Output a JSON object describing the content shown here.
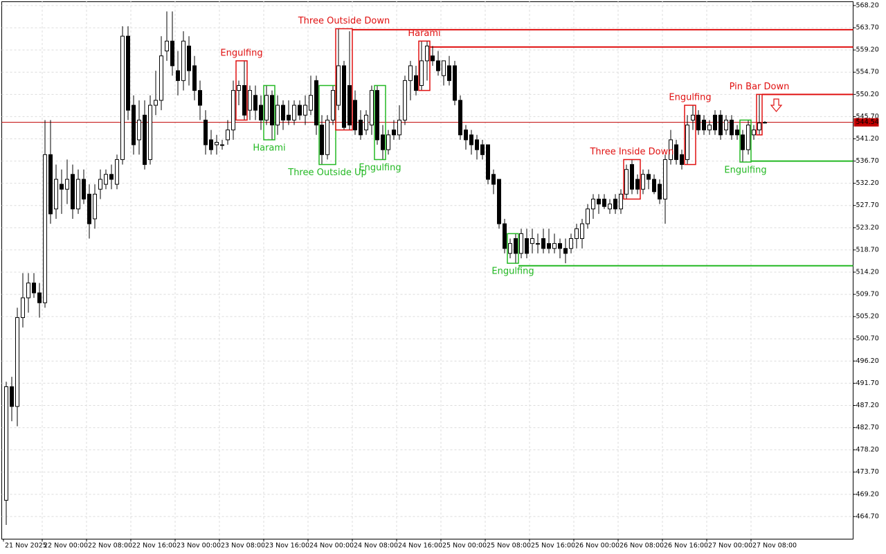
{
  "chart_data": {
    "type": "candlestick",
    "categories": [
      "21 Nov 2025",
      null,
      null,
      null,
      null,
      null,
      null,
      "22 Nov 00:00",
      null,
      null,
      null,
      null,
      null,
      null,
      null,
      "22 Nov 08:00",
      null,
      null,
      null,
      null,
      null,
      null,
      null,
      "22 Nov 16:00",
      null,
      null,
      null,
      null,
      null,
      null,
      null,
      "23 Nov 00:00",
      null,
      null,
      null,
      null,
      null,
      null,
      null,
      "23 Nov 08:00",
      null,
      null,
      null,
      null,
      null,
      null,
      null,
      "23 Nov 16:00",
      null,
      null,
      null,
      null,
      null,
      null,
      null,
      "24 Nov 00:00",
      null,
      null,
      null,
      null,
      null,
      null,
      null,
      "24 Nov 08:00",
      null,
      null,
      null,
      null,
      null,
      null,
      null,
      "24 Nov 16:00",
      null,
      null,
      null,
      null,
      null,
      null,
      null,
      "25 Nov 00:00",
      null,
      null,
      null,
      null,
      null,
      null,
      null,
      "25 Nov 08:00",
      null,
      null,
      null,
      null,
      null,
      null,
      null,
      "25 Nov 16:00",
      null,
      null,
      null,
      null,
      null,
      null,
      null,
      "26 Nov 00:00",
      null,
      null,
      null,
      null,
      null,
      null,
      null,
      "26 Nov 08:00",
      null,
      null,
      null,
      null,
      null,
      null,
      null,
      "26 Nov 16:00",
      null,
      null,
      null,
      null,
      null,
      null,
      null,
      "27 Nov 00:00",
      null,
      null,
      null,
      null,
      null,
      null,
      null,
      "27 Nov 08:00",
      null,
      null
    ],
    "open": [
      468,
      491,
      487,
      505,
      509,
      512,
      510,
      508,
      538,
      527,
      532,
      531,
      534,
      527,
      533,
      530,
      525,
      531,
      532,
      534,
      532,
      537,
      562,
      548,
      541,
      546,
      537,
      548,
      549,
      559,
      561,
      555,
      553,
      560,
      556,
      551,
      545,
      541,
      540,
      540,
      541,
      543,
      551,
      552,
      547,
      550,
      548,
      545,
      550,
      544,
      548,
      546,
      545,
      548,
      546,
      547,
      553,
      544,
      538,
      545,
      548,
      556,
      552,
      549,
      545,
      543,
      544,
      551,
      542,
      539,
      543,
      542,
      545,
      553,
      554,
      552,
      557,
      558,
      557,
      554,
      556,
      556,
      549,
      543,
      542,
      541,
      540,
      540,
      534,
      533,
      524,
      518,
      521,
      518,
      521,
      520,
      520,
      521,
      520,
      519,
      520,
      519,
      519,
      521,
      521,
      524,
      527,
      529,
      529,
      527,
      529,
      527,
      530,
      536,
      533,
      531,
      534,
      533,
      532,
      529,
      537,
      540,
      538,
      537,
      545,
      546,
      545,
      543,
      546,
      546,
      543,
      545,
      543,
      542,
      539,
      542,
      543,
      544.4
    ],
    "high": [
      492,
      493,
      507,
      514,
      514,
      514,
      512,
      545,
      545,
      536,
      535,
      537,
      536,
      535,
      535,
      532,
      532,
      535,
      535,
      536,
      538,
      564,
      564,
      550,
      549,
      549,
      550,
      555,
      562,
      567,
      567,
      559,
      563,
      562,
      558,
      553,
      547,
      543,
      542,
      541,
      545,
      553,
      553,
      557,
      552,
      552,
      550,
      552,
      551,
      550,
      549,
      549,
      549,
      549,
      550,
      554,
      554,
      546,
      546,
      552,
      563.5,
      557,
      563,
      551,
      547,
      547,
      552,
      552,
      544,
      543,
      545,
      548,
      554,
      557,
      556,
      561,
      561,
      560,
      559,
      557,
      558,
      557,
      550,
      544,
      543,
      542,
      541,
      540,
      535,
      533,
      525,
      521,
      522,
      523,
      523,
      523,
      522,
      523,
      523,
      522,
      521,
      521,
      522,
      524,
      525,
      528,
      530,
      530,
      530,
      529,
      530,
      531,
      536,
      537,
      534,
      535,
      535,
      534,
      533,
      538,
      543,
      541,
      539,
      546,
      548,
      547,
      546,
      545,
      547,
      547,
      546,
      546,
      544,
      543,
      545,
      544,
      550.2,
      544.8
    ],
    "low": [
      463,
      484,
      483,
      503,
      506,
      509,
      505,
      507,
      524,
      525,
      526,
      528,
      525,
      526,
      528,
      521,
      523,
      529,
      531,
      531,
      531,
      536,
      545,
      538,
      538,
      535,
      536,
      546,
      547,
      557,
      554,
      550,
      551,
      552,
      549,
      545,
      538,
      538,
      538,
      539,
      540,
      541,
      548,
      545,
      545,
      545,
      543,
      544,
      541,
      542,
      543,
      544,
      544,
      545,
      544,
      546,
      542,
      536,
      537,
      544,
      547,
      543,
      543,
      542,
      541,
      542,
      542,
      540,
      537,
      538,
      541,
      541,
      544,
      549,
      550,
      551,
      553,
      556,
      554,
      552,
      552,
      548,
      541,
      539,
      538,
      537,
      537,
      532,
      530,
      523,
      518,
      517,
      516,
      517,
      517,
      518,
      518,
      518,
      518,
      518,
      517,
      516,
      518,
      519,
      519,
      523,
      525,
      526,
      527,
      526,
      526,
      526,
      529,
      530,
      530,
      530,
      531,
      530,
      528,
      524,
      536,
      536,
      535,
      536,
      543,
      542,
      542,
      542,
      542,
      541,
      542,
      541,
      541,
      536.5,
      538,
      541,
      542,
      544.3
    ],
    "close": [
      491,
      487,
      505,
      509,
      512,
      510,
      508,
      538,
      526,
      533,
      531,
      533,
      527,
      533,
      529,
      524,
      530,
      533,
      534,
      533,
      537,
      562,
      547,
      540,
      545,
      536,
      548,
      549,
      558,
      561,
      556,
      553,
      561,
      555,
      551,
      548,
      540,
      539,
      540.5,
      540,
      543,
      551,
      552,
      546,
      551,
      547,
      545,
      550,
      544,
      548,
      545,
      545,
      548,
      546,
      548,
      550,
      544,
      538,
      545,
      551,
      556,
      543.5,
      544,
      543,
      542,
      546,
      551,
      541,
      539,
      542,
      542,
      545,
      553,
      556,
      551,
      557,
      560,
      557,
      555,
      557,
      553,
      549,
      542,
      541,
      540,
      539,
      538,
      533,
      532,
      524,
      519,
      520,
      518,
      522,
      518,
      521,
      520,
      519,
      519,
      520,
      519,
      518,
      521,
      523,
      524,
      527,
      529,
      528,
      527.5,
      528,
      527,
      530,
      535,
      531,
      531,
      534,
      533,
      530.5,
      529,
      537,
      541,
      537,
      536,
      544,
      546,
      543,
      543,
      544,
      543,
      542,
      545,
      542,
      542,
      539,
      544,
      543,
      544.4,
      544.54
    ],
    "up_color": "#ffffff",
    "down_color": "#000000",
    "wick_color": "#000000",
    "ylim": [
      460.2,
      569.04
    ],
    "yticks": [
      {
        "value": 568.2,
        "label": "568.20"
      },
      {
        "value": 563.7,
        "label": "563.70"
      },
      {
        "value": 559.2,
        "label": "559.20"
      },
      {
        "value": 554.7,
        "label": "554.70"
      },
      {
        "value": 550.2,
        "label": "550.20"
      },
      {
        "value": 545.7,
        "label": "545.70"
      },
      {
        "value": 541.2,
        "label": "541.20"
      },
      {
        "value": 536.7,
        "label": "536.70"
      },
      {
        "value": 532.2,
        "label": "532.20"
      },
      {
        "value": 527.7,
        "label": "527.70"
      },
      {
        "value": 523.2,
        "label": "523.20"
      },
      {
        "value": 518.7,
        "label": "518.70"
      },
      {
        "value": 514.2,
        "label": "514.20"
      },
      {
        "value": 509.7,
        "label": "509.70"
      },
      {
        "value": 505.2,
        "label": "505.20"
      },
      {
        "value": 500.7,
        "label": "500.70"
      },
      {
        "value": 496.2,
        "label": "496.20"
      },
      {
        "value": 491.7,
        "label": "491.70"
      },
      {
        "value": 487.2,
        "label": "487.20"
      },
      {
        "value": 482.7,
        "label": "482.70"
      },
      {
        "value": 478.2,
        "label": "478.20"
      },
      {
        "value": 473.7,
        "label": "473.70"
      },
      {
        "value": 469.2,
        "label": "469.20"
      },
      {
        "value": 464.7,
        "label": "464.70"
      }
    ],
    "grid": true,
    "last_price": {
      "value": 544.54,
      "label": "544.54",
      "color": "#c00000"
    },
    "patterns": [
      {
        "name": "Engulfing",
        "color": "#e01010",
        "span": [
          42,
          43
        ]
      },
      {
        "name": "Harami",
        "color": "#22b822",
        "span": [
          47,
          48
        ]
      },
      {
        "name": "Three Outside Up",
        "color": "#22b822",
        "span": [
          57,
          59
        ]
      },
      {
        "name": "Three Outside Down",
        "color": "#e01010",
        "span": [
          60,
          62
        ],
        "level": 563.3
      },
      {
        "name": "Engulfing",
        "color": "#22b822",
        "span": [
          67,
          68
        ]
      },
      {
        "name": "Harami",
        "color": "#e01010",
        "span": [
          75,
          76
        ],
        "level": 559.8
      },
      {
        "name": "Engulfing",
        "color": "#22b822",
        "span": [
          91,
          92
        ],
        "level": 515.5
      },
      {
        "name": "Three Inside Down",
        "color": "#e01010",
        "span": [
          112,
          114
        ]
      },
      {
        "name": "Engulfing",
        "color": "#e01010",
        "span": [
          123,
          124
        ]
      },
      {
        "name": "Engulfing",
        "color": "#22b822",
        "span": [
          133,
          134
        ],
        "level": 536.7
      },
      {
        "name": "Pin Bar Down",
        "color": "#e01010",
        "span": [
          136,
          136
        ],
        "level": 550.2
      }
    ]
  }
}
